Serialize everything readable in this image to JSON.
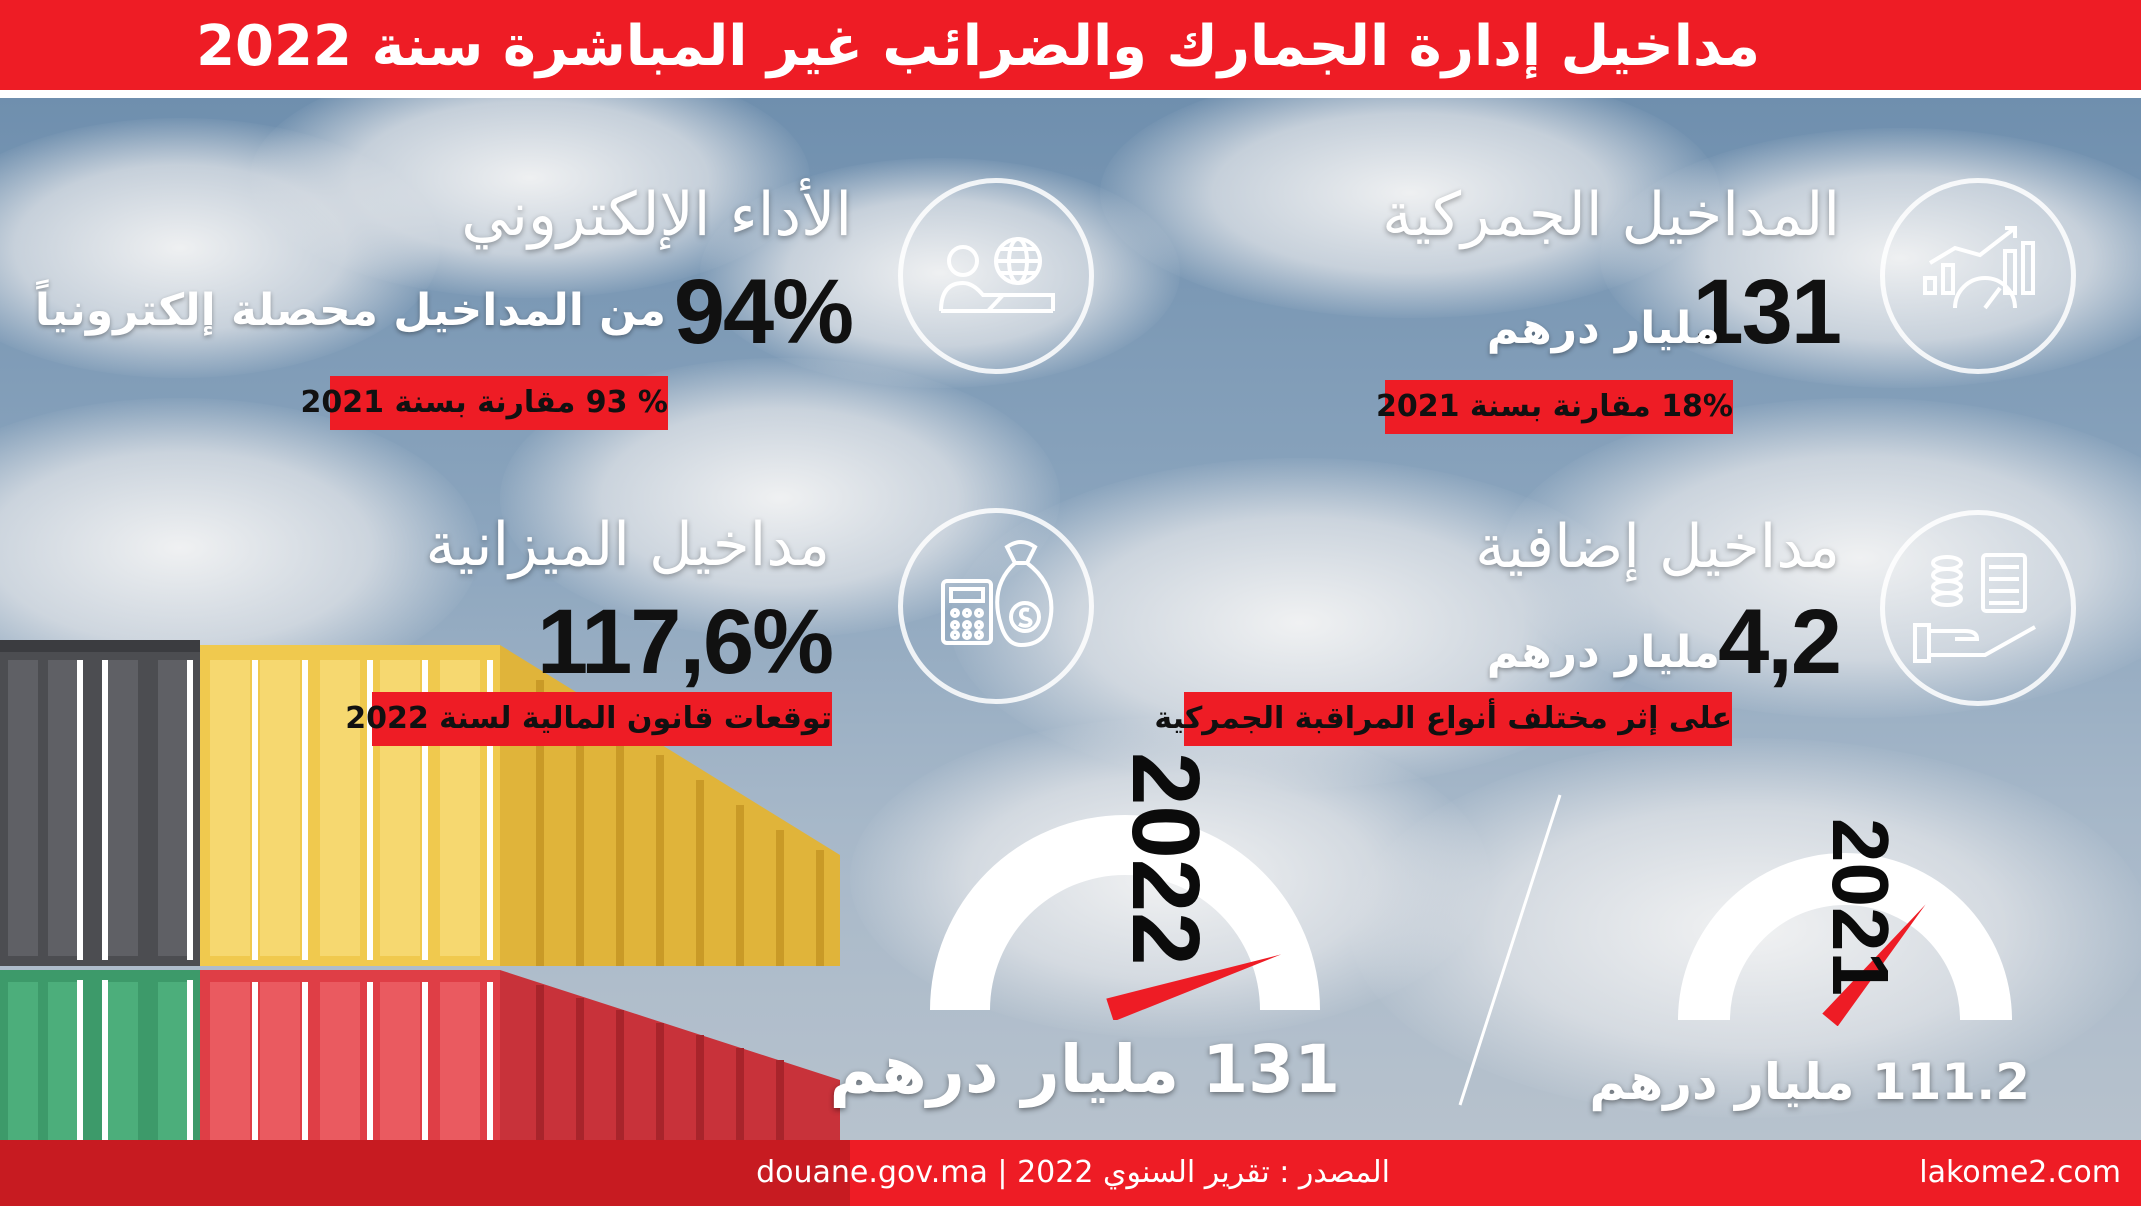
{
  "header": {
    "title": "مداخيل إدارة الجمارك والضرائب غير المباشرة سنة 2022"
  },
  "colors": {
    "accent": "#ee1c25",
    "text_dark": "#111111",
    "text_light": "#ffffff"
  },
  "cards": {
    "customs_revenue": {
      "heading": "المداخيل الجمركية",
      "value": "131",
      "unit": "مليار درهم",
      "note": "18% مقارنة بسنة 2021",
      "icon": "chart-gauge-icon"
    },
    "electronic_payment": {
      "heading": "الأداء الإلكتروني",
      "value": "94%",
      "unit": "من المداخيل محصلة إلكترونياً",
      "note": "% 93 مقارنة بسنة 2021",
      "icon": "user-laptop-globe-icon"
    },
    "additional_revenue": {
      "heading": "مداخيل إضافية",
      "value": "4,2",
      "unit": "مليار درهم",
      "note": "على إثر مختلف أنواع المراقبة الجمركية",
      "icon": "hand-calculator-coins-icon"
    },
    "budget_revenue": {
      "heading": "مداخيل الميزانية",
      "value": "117,6%",
      "note": "توقعات قانون المالية لسنة 2022",
      "icon": "calculator-money-bag-icon"
    }
  },
  "gauges": [
    {
      "year": "2022",
      "value": "131 مليار درهم",
      "level": 0.9
    },
    {
      "year": "2021",
      "value": "111.2 مليار درهم",
      "level": 0.72
    }
  ],
  "footer": {
    "source": "المصدر : تقرير السنوي 2022 | douane.gov.ma",
    "site": "lakome2.com"
  }
}
